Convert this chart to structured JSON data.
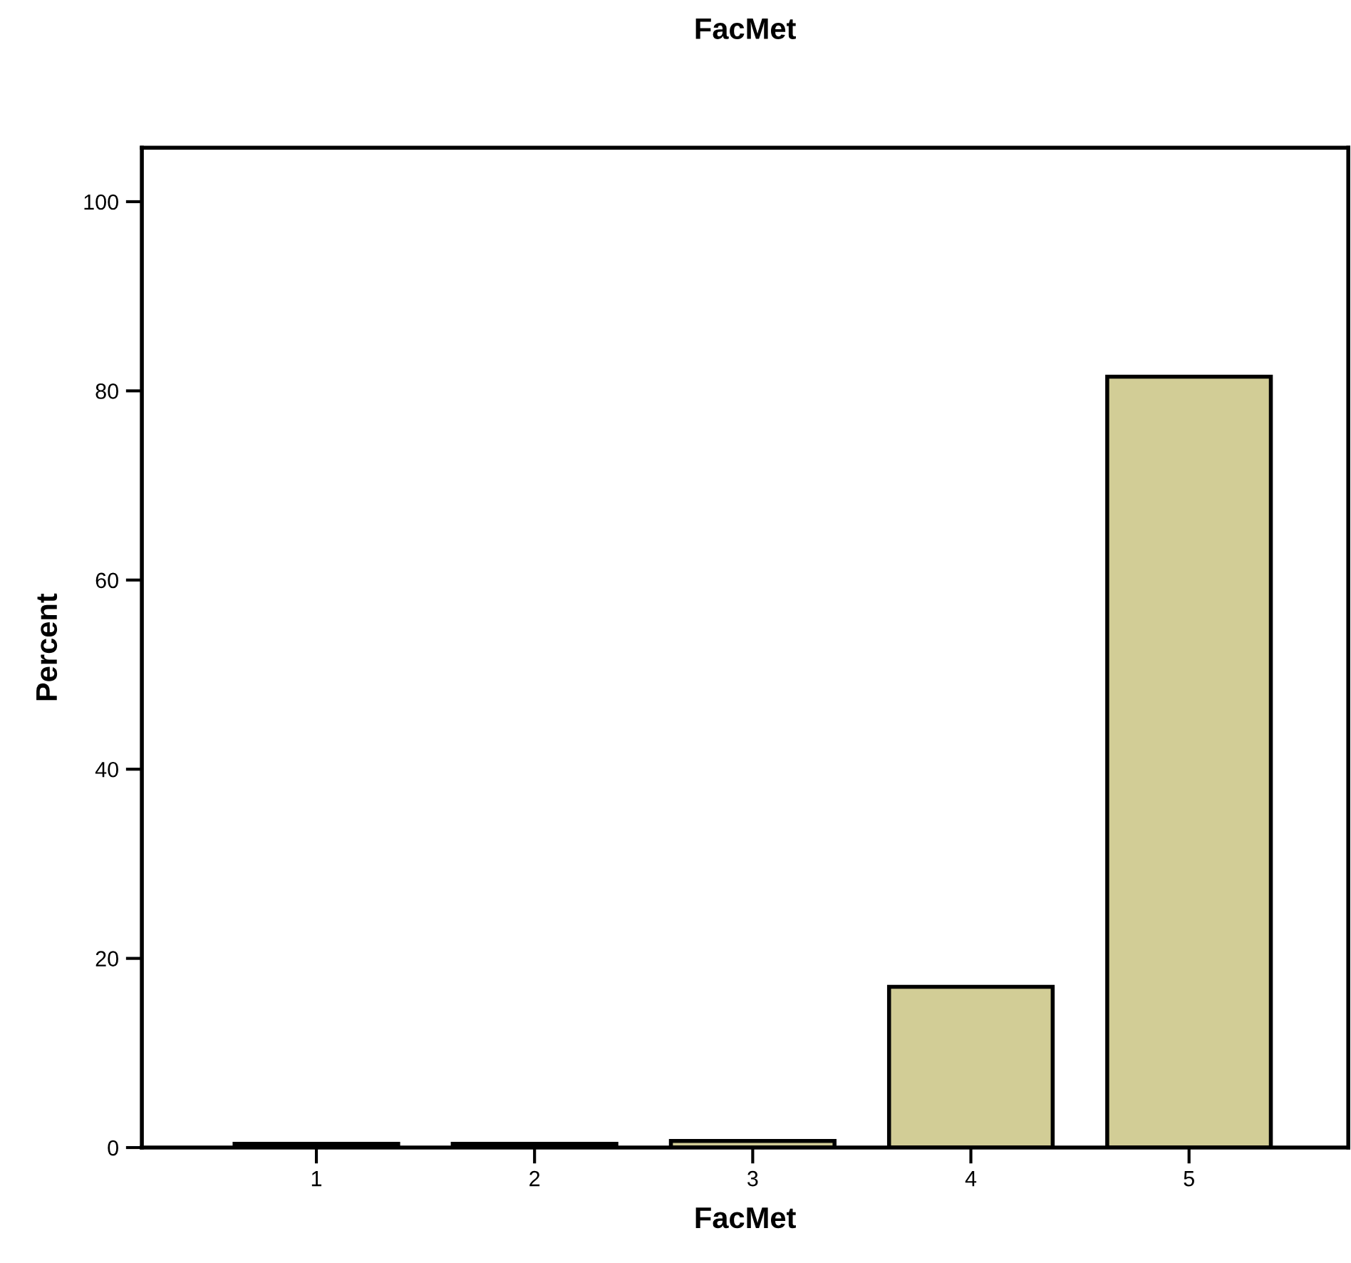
{
  "chart_data": {
    "type": "bar",
    "title": "FacMet",
    "xlabel": "FacMet",
    "ylabel": "Percent",
    "categories": [
      "1",
      "2",
      "3",
      "4",
      "5"
    ],
    "values": [
      0.4,
      0.4,
      0.7,
      17.0,
      81.5
    ],
    "color": "#d2cd96",
    "ylim": [
      0,
      105.7
    ],
    "yticks": [
      0,
      20,
      40,
      60,
      80,
      100
    ],
    "grid": false
  }
}
